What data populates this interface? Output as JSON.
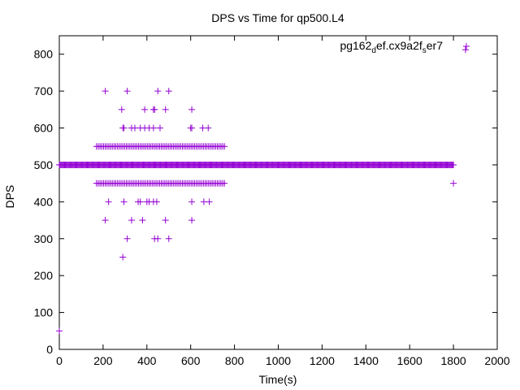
{
  "chart_data": {
    "type": "scatter",
    "title": "DPS vs Time for qp500.L4",
    "xlabel": "Time(s)",
    "ylabel": "DPS",
    "xlim": [
      0,
      2000
    ],
    "ylim": [
      0,
      850
    ],
    "xticks": [
      0,
      200,
      400,
      600,
      800,
      1000,
      1200,
      1400,
      1600,
      1800,
      2000
    ],
    "yticks": [
      0,
      100,
      200,
      300,
      400,
      500,
      600,
      700,
      800
    ],
    "grid": false,
    "legend_position": "top-right",
    "marker_color": "#9400d3",
    "series": [
      {
        "legend": {
          "base": "pg162",
          "sub1": "d",
          "mid": "ef.cx9a2f",
          "sub2": "s",
          "tail": "er7"
        },
        "bands": [
          {
            "y": 500,
            "x_start": 0,
            "x_end": 1800,
            "step": 4
          },
          {
            "y": 550,
            "x_start": 170,
            "x_end": 760,
            "step": 8
          },
          {
            "y": 450,
            "x_start": 170,
            "x_end": 760,
            "step": 8
          }
        ],
        "points": [
          [
            0,
            50
          ],
          [
            1855,
            812
          ],
          [
            1800,
            450
          ],
          [
            210,
            700
          ],
          [
            310,
            700
          ],
          [
            450,
            700
          ],
          [
            500,
            700
          ],
          [
            285,
            650
          ],
          [
            390,
            650
          ],
          [
            430,
            650
          ],
          [
            435,
            650
          ],
          [
            485,
            650
          ],
          [
            605,
            650
          ],
          [
            290,
            600
          ],
          [
            295,
            600
          ],
          [
            330,
            600
          ],
          [
            345,
            600
          ],
          [
            370,
            600
          ],
          [
            390,
            600
          ],
          [
            410,
            600
          ],
          [
            430,
            600
          ],
          [
            460,
            600
          ],
          [
            600,
            600
          ],
          [
            605,
            600
          ],
          [
            655,
            600
          ],
          [
            680,
            600
          ],
          [
            225,
            400
          ],
          [
            295,
            400
          ],
          [
            360,
            400
          ],
          [
            370,
            400
          ],
          [
            400,
            400
          ],
          [
            410,
            400
          ],
          [
            430,
            400
          ],
          [
            445,
            400
          ],
          [
            605,
            400
          ],
          [
            660,
            400
          ],
          [
            685,
            400
          ],
          [
            210,
            350
          ],
          [
            330,
            350
          ],
          [
            380,
            350
          ],
          [
            485,
            350
          ],
          [
            605,
            350
          ],
          [
            310,
            300
          ],
          [
            435,
            300
          ],
          [
            450,
            300
          ],
          [
            500,
            300
          ],
          [
            290,
            250
          ]
        ]
      }
    ]
  }
}
